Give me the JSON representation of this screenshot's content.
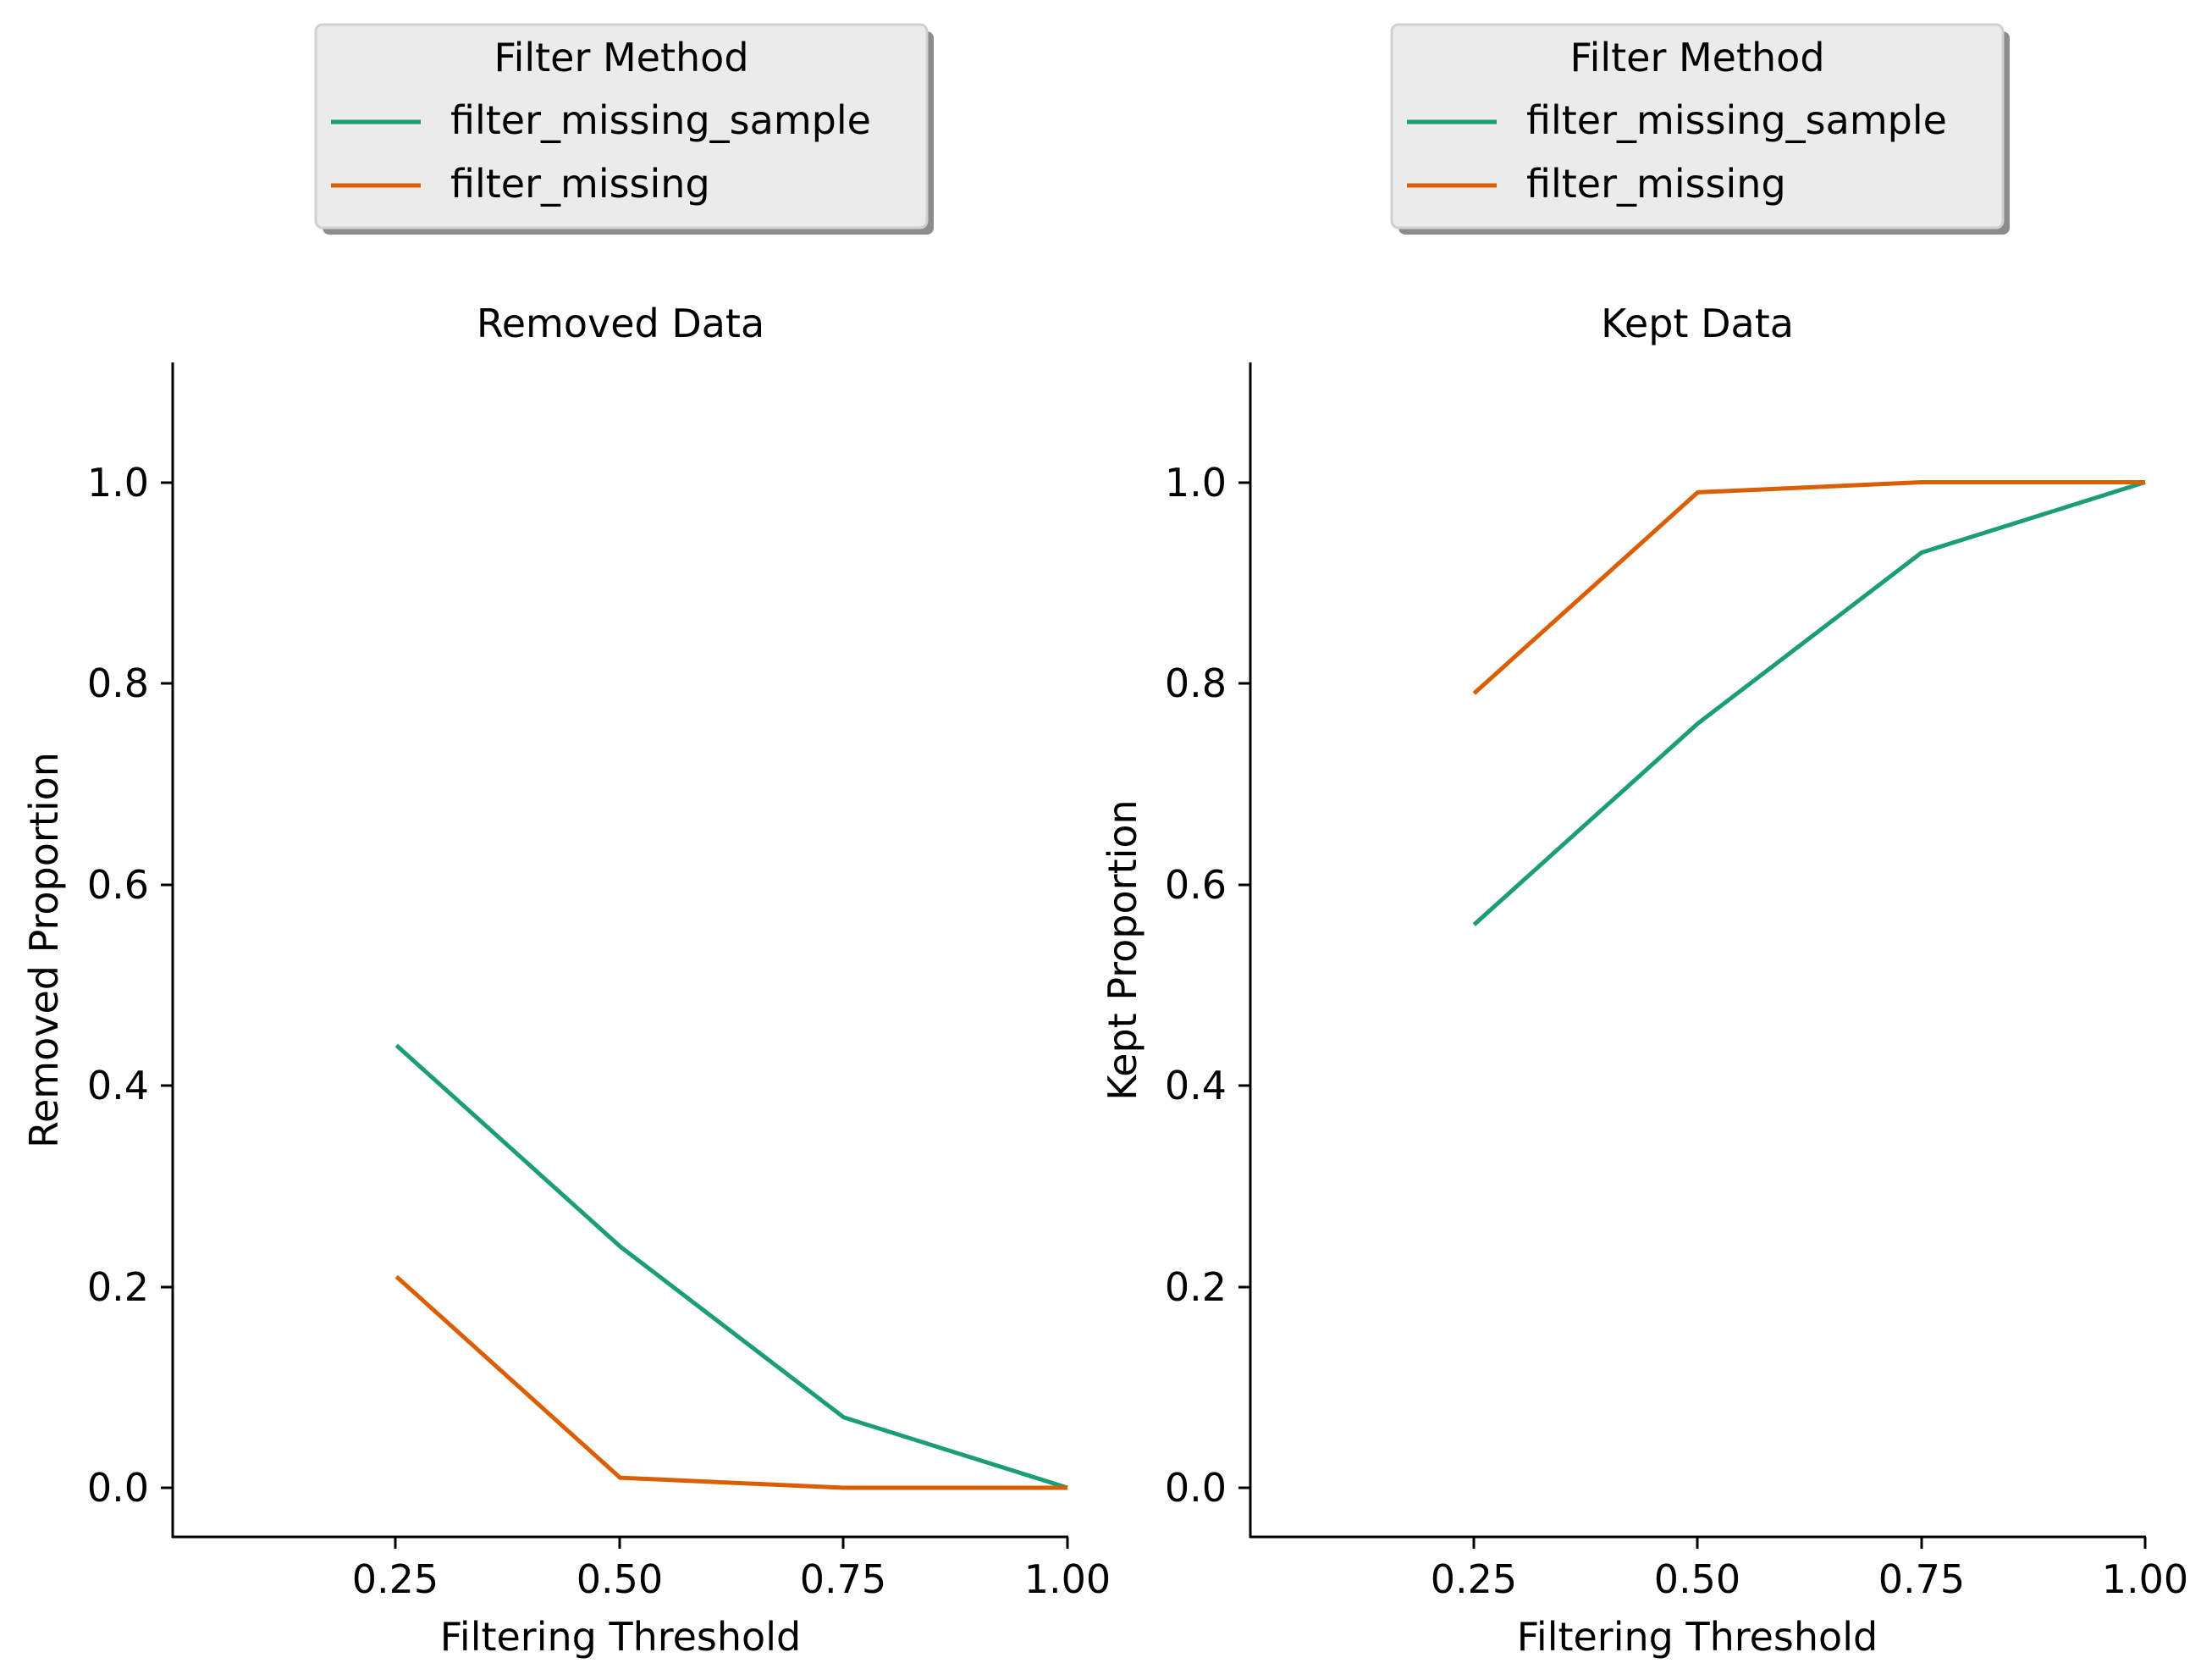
{
  "colors": {
    "filter_missing_sample": "#1b9e77",
    "filter_missing": "#d95f02",
    "legend_bg": "#ebebeb",
    "legend_border": "#cccccc"
  },
  "chart_data": [
    {
      "type": "line",
      "title": "Removed Data",
      "xlabel": "Filtering Threshold",
      "ylabel": "Removed Proportion",
      "xlim": [
        0.0,
        1.0
      ],
      "ylim": [
        -0.05,
        1.12
      ],
      "xticks": [
        "0.25",
        "0.50",
        "0.75",
        "1.00"
      ],
      "yticks": [
        "0.0",
        "0.2",
        "0.4",
        "0.6",
        "0.8",
        "1.0"
      ],
      "grid": false,
      "legend": {
        "title": "Filter Method",
        "placement": "above",
        "entries": [
          "filter_missing_sample",
          "filter_missing"
        ]
      },
      "x": [
        0.25,
        0.5,
        0.75,
        1.0
      ],
      "series": [
        {
          "name": "filter_missing_sample",
          "values": [
            0.44,
            0.24,
            0.07,
            0.0
          ]
        },
        {
          "name": "filter_missing",
          "values": [
            0.21,
            0.01,
            0.0,
            0.0
          ]
        }
      ]
    },
    {
      "type": "line",
      "title": "Kept Data",
      "xlabel": "Filtering Threshold",
      "ylabel": "Kept Proportion",
      "xlim": [
        0.0,
        1.0
      ],
      "ylim": [
        -0.05,
        1.12
      ],
      "xticks": [
        "0.25",
        "0.50",
        "0.75",
        "1.00"
      ],
      "yticks": [
        "0.0",
        "0.2",
        "0.4",
        "0.6",
        "0.8",
        "1.0"
      ],
      "grid": false,
      "legend": {
        "title": "Filter Method",
        "placement": "above",
        "entries": [
          "filter_missing_sample",
          "filter_missing"
        ]
      },
      "x": [
        0.25,
        0.5,
        0.75,
        1.0
      ],
      "series": [
        {
          "name": "filter_missing_sample",
          "values": [
            0.56,
            0.76,
            0.93,
            1.0
          ]
        },
        {
          "name": "filter_missing",
          "values": [
            0.79,
            0.99,
            1.0,
            1.0
          ]
        }
      ]
    }
  ]
}
